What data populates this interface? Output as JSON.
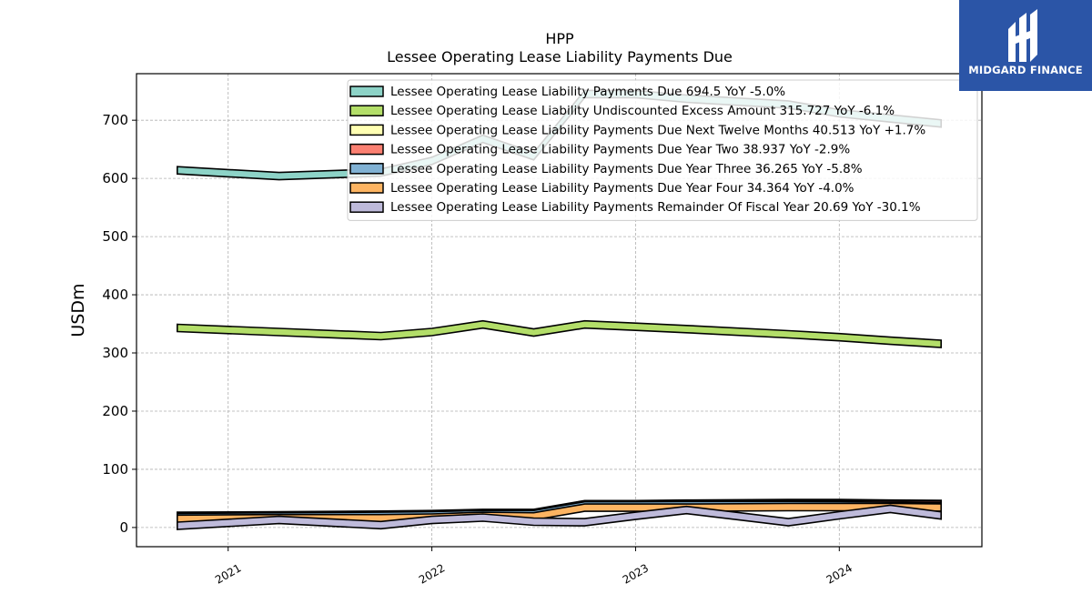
{
  "logo": {
    "brand": "MIDGARD FINANCE"
  },
  "chart_data": {
    "type": "area",
    "title": "HPP",
    "subtitle": "Lessee Operating Lease Liability Payments Due",
    "ylabel": "USDm",
    "xlabel": "",
    "ylim": [
      -33,
      780
    ],
    "xlim": [
      2020.55,
      2024.7
    ],
    "yticks": [
      0,
      100,
      200,
      300,
      400,
      500,
      600,
      700
    ],
    "xticks": [
      2021,
      2022,
      2023,
      2024
    ],
    "xtick_labels": [
      "2021",
      "2022",
      "2023",
      "2024"
    ],
    "grid": true,
    "legend_position": "top-right",
    "x": [
      2020.75,
      2021.25,
      2021.75,
      2022.0,
      2022.25,
      2022.5,
      2022.75,
      2023.0,
      2023.25,
      2023.75,
      2024.0,
      2024.25,
      2024.5
    ],
    "series": [
      {
        "name": "Lessee Operating Lease Liability Payments Due",
        "legend": "Lessee Operating Lease Liability Payments Due  694.5 YoY -5.0%",
        "color": "#8dd3c7",
        "values": [
          614,
          604,
          610,
          630,
          668,
          638,
          745,
          745,
          737,
          727,
          712,
          703,
          694.5
        ]
      },
      {
        "name": "Lessee Operating Lease Liability Undiscounted Excess Amount",
        "legend": "Lessee Operating Lease Liability Undiscounted Excess Amount  315.727 YoY -6.1%",
        "color": "#b3de69",
        "values": [
          343,
          336,
          329,
          336,
          349,
          335,
          349,
          345,
          341,
          332,
          327,
          321,
          315.727
        ]
      },
      {
        "name": "Lessee Operating Lease Liability Payments Due Next Twelve Months",
        "legend": "Lessee Operating Lease Liability Payments Due Next Twelve Months  40.513 YoY +1.7%",
        "color": "#ffffb3",
        "values": [
          20,
          21,
          22,
          23,
          25,
          25,
          40,
          40,
          41,
          42,
          42,
          41,
          40.513
        ]
      },
      {
        "name": "Lessee Operating Lease Liability Payments Due Year Two",
        "legend": "Lessee Operating Lease Liability Payments Due Year Two  38.937 YoY -2.9%",
        "color": "#fb8072",
        "values": [
          19,
          20,
          21,
          22,
          24,
          24,
          39,
          39,
          40,
          40,
          40,
          39.5,
          38.937
        ]
      },
      {
        "name": "Lessee Operating Lease Liability Payments Due Year Three",
        "legend": "Lessee Operating Lease Liability Payments Due Year Three  36.265 YoY -5.8%",
        "color": "#80b1d3",
        "values": [
          18,
          19,
          20,
          21,
          23,
          23,
          38,
          38,
          38.5,
          38.5,
          38,
          37,
          36.265
        ]
      },
      {
        "name": "Lessee Operating Lease Liability Payments Due Year Four",
        "legend": "Lessee Operating Lease Liability Payments Due Year Four  34.364 YoY -4.0%",
        "color": "#fdb462",
        "values": [
          15,
          16,
          16,
          17,
          20,
          19,
          34,
          34,
          34,
          35,
          35,
          35,
          34.364
        ]
      },
      {
        "name": "Lessee Operating Lease Liability Payments Remainder Of Fiscal Year",
        "legend": "Lessee Operating Lease Liability Payments Remainder Of Fiscal Year  20.69 YoY -30.1%",
        "color": "#bebada",
        "values": [
          3,
          13,
          4,
          13,
          17,
          10,
          9,
          20,
          30,
          9,
          21,
          32,
          20.69
        ]
      }
    ]
  }
}
